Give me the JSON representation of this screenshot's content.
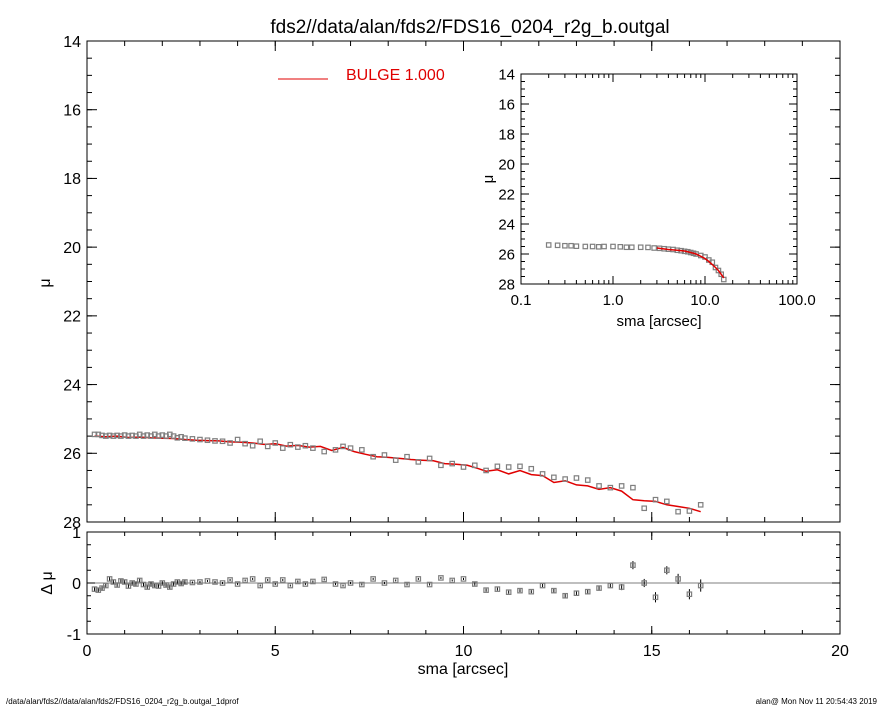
{
  "title": "fds2//data/alan/fds2/FDS16_0204_r2g_b.outgal",
  "footer": {
    "left": "/data/alan/fds2//data/alan/fds2/FDS16_0204_r2g_b.outgal_1dprof",
    "right": "alan@  Mon Nov 11 20:54:43 2019"
  },
  "colors": {
    "model": "#e00000",
    "points": "#7f7f7f",
    "axes": "#000000",
    "zero_line": "#7f7f7f"
  },
  "chart_data": [
    {
      "id": "main",
      "type": "scatter",
      "xlabel": "sma [arcsec]",
      "ylabel": "μ",
      "xlim": [
        0,
        20
      ],
      "ylim": [
        28,
        14
      ],
      "y_inverted": true,
      "xticks": [
        0,
        5,
        10,
        15,
        20
      ],
      "yticks": [
        14,
        16,
        18,
        20,
        22,
        24,
        26,
        28
      ],
      "xtick_labels": [
        "0",
        "5",
        "10",
        "15",
        "20"
      ],
      "ytick_labels": [
        "14",
        "16",
        "18",
        "20",
        "22",
        "24",
        "26",
        "28"
      ],
      "legend": {
        "label": "BULGE  1.000",
        "position": "top-center"
      },
      "series": [
        {
          "name": "BULGE  1.000",
          "kind": "line",
          "x": [
            0.2,
            0.5,
            0.8,
            1.1,
            1.4,
            1.7,
            2.0,
            2.3,
            2.6,
            2.9,
            3.2,
            3.5,
            3.8,
            4.1,
            4.4,
            4.7,
            5.0,
            5.3,
            5.6,
            5.9,
            6.2,
            6.5,
            6.8,
            7.1,
            7.4,
            7.7,
            8.0,
            8.3,
            8.6,
            8.9,
            9.2,
            9.5,
            9.8,
            10.1,
            10.4,
            10.6,
            10.9,
            11.2,
            11.5,
            11.8,
            12.1,
            12.4,
            12.7,
            13.0,
            13.3,
            13.6,
            13.9,
            14.2,
            14.5,
            14.8,
            15.1,
            15.4,
            15.7,
            16.0,
            16.3
          ],
          "y": [
            25.5,
            25.52,
            25.5,
            25.54,
            25.53,
            25.55,
            25.56,
            25.57,
            25.6,
            25.62,
            25.63,
            25.64,
            25.67,
            25.68,
            25.7,
            25.74,
            25.72,
            25.79,
            25.77,
            25.82,
            25.8,
            25.92,
            25.83,
            25.95,
            26.03,
            26.1,
            26.12,
            26.15,
            26.18,
            26.2,
            26.22,
            26.3,
            26.32,
            26.35,
            26.45,
            26.52,
            26.48,
            26.6,
            26.5,
            26.62,
            26.65,
            26.85,
            26.8,
            26.92,
            26.95,
            27.05,
            27.0,
            27.1,
            27.35,
            27.38,
            27.4,
            27.5,
            27.55,
            27.6,
            27.7
          ]
        },
        {
          "name": "",
          "kind": "points",
          "x": [
            0.2,
            0.3,
            0.4,
            0.5,
            0.6,
            0.7,
            0.8,
            0.9,
            1.0,
            1.1,
            1.2,
            1.3,
            1.4,
            1.5,
            1.6,
            1.7,
            1.8,
            1.9,
            2.0,
            2.1,
            2.2,
            2.3,
            2.4,
            2.5,
            2.6,
            2.8,
            3.0,
            3.2,
            3.4,
            3.6,
            3.8,
            4.0,
            4.2,
            4.4,
            4.6,
            4.8,
            5.0,
            5.2,
            5.4,
            5.6,
            5.8,
            6.0,
            6.3,
            6.6,
            6.8,
            7.0,
            7.3,
            7.6,
            7.9,
            8.2,
            8.5,
            8.8,
            9.1,
            9.4,
            9.7,
            10.0,
            10.3,
            10.6,
            10.9,
            11.2,
            11.5,
            11.8,
            12.1,
            12.4,
            12.7,
            13.0,
            13.3,
            13.6,
            13.9,
            14.2,
            14.5,
            14.8,
            15.1,
            15.4,
            15.7,
            16.0,
            16.3
          ],
          "y": [
            25.45,
            25.45,
            25.48,
            25.5,
            25.48,
            25.5,
            25.48,
            25.5,
            25.47,
            25.5,
            25.48,
            25.5,
            25.45,
            25.5,
            25.47,
            25.5,
            25.45,
            25.5,
            25.47,
            25.5,
            25.45,
            25.5,
            25.55,
            25.52,
            25.56,
            25.58,
            25.6,
            25.62,
            25.64,
            25.65,
            25.7,
            25.6,
            25.72,
            25.78,
            25.65,
            25.8,
            25.7,
            25.85,
            25.75,
            25.82,
            25.78,
            25.85,
            25.95,
            25.9,
            25.8,
            25.85,
            25.9,
            26.1,
            26.05,
            26.2,
            26.1,
            26.25,
            26.15,
            26.35,
            26.3,
            26.4,
            26.35,
            26.5,
            26.38,
            26.4,
            26.38,
            26.45,
            26.6,
            26.7,
            26.75,
            26.72,
            26.78,
            26.95,
            27.0,
            26.95,
            27.0,
            27.6,
            27.35,
            27.4,
            27.7,
            27.68,
            27.5
          ]
        }
      ]
    },
    {
      "id": "inset",
      "type": "scatter",
      "xlabel": "sma [arcsec]",
      "ylabel": "μ",
      "x_scale": "log",
      "xlim": [
        0.1,
        100.0
      ],
      "ylim": [
        28,
        14
      ],
      "y_inverted": true,
      "xticks": [
        0.1,
        1.0,
        10.0,
        100.0
      ],
      "yticks": [
        14,
        16,
        18,
        20,
        22,
        24,
        26,
        28
      ],
      "xtick_labels": [
        "0.1",
        "1.0",
        "10.0",
        "100.0"
      ],
      "ytick_labels": [
        "14",
        "16",
        "18",
        "20",
        "22",
        "24",
        "26",
        "28"
      ],
      "series": [
        {
          "name": "",
          "kind": "points",
          "x": [
            0.2,
            0.25,
            0.3,
            0.35,
            0.4,
            0.5,
            0.6,
            0.7,
            0.8,
            1.0,
            1.2,
            1.4,
            1.6,
            2.0,
            2.4,
            2.8,
            3.2,
            3.6,
            4.0,
            4.5,
            5.0,
            5.5,
            6.0,
            6.5,
            7.0,
            7.5,
            8.0,
            9.0,
            10.0,
            11.0,
            12.0,
            13.0,
            14.0,
            15.0,
            16.0
          ],
          "y": [
            25.4,
            25.42,
            25.45,
            25.45,
            25.48,
            25.5,
            25.5,
            25.52,
            25.5,
            25.5,
            25.52,
            25.55,
            25.55,
            25.55,
            25.56,
            25.6,
            25.62,
            25.65,
            25.68,
            25.7,
            25.75,
            25.78,
            25.82,
            25.85,
            25.9,
            25.95,
            26.0,
            26.1,
            26.2,
            26.4,
            26.55,
            26.9,
            27.1,
            27.35,
            27.7
          ]
        },
        {
          "name": "",
          "kind": "line",
          "x": [
            3.0,
            4.0,
            5.0,
            6.0,
            7.0,
            8.0,
            9.0,
            10.0,
            11.0,
            12.0,
            13.0,
            14.0,
            15.0,
            16.0
          ],
          "y": [
            25.6,
            25.7,
            25.75,
            25.8,
            25.9,
            26.0,
            26.15,
            26.3,
            26.5,
            26.7,
            26.9,
            27.1,
            27.35,
            27.6
          ]
        }
      ]
    },
    {
      "id": "residual",
      "type": "scatter",
      "xlabel": "sma [arcsec]",
      "ylabel": "Δ μ",
      "xlim": [
        0,
        20
      ],
      "ylim": [
        -1,
        1
      ],
      "xticks": [
        0,
        5,
        10,
        15,
        20
      ],
      "yticks": [
        -1,
        0,
        1
      ],
      "xtick_labels": [
        "0",
        "5",
        "10",
        "15",
        "20"
      ],
      "ytick_labels": [
        "-1",
        "0",
        "1"
      ],
      "series": [
        {
          "name": "",
          "kind": "points",
          "x": [
            0.2,
            0.3,
            0.4,
            0.5,
            0.6,
            0.7,
            0.8,
            0.9,
            1.0,
            1.1,
            1.2,
            1.3,
            1.4,
            1.5,
            1.6,
            1.7,
            1.8,
            1.9,
            2.0,
            2.1,
            2.2,
            2.3,
            2.4,
            2.5,
            2.6,
            2.8,
            3.0,
            3.2,
            3.4,
            3.6,
            3.8,
            4.0,
            4.2,
            4.4,
            4.6,
            4.8,
            5.0,
            5.2,
            5.4,
            5.6,
            5.8,
            6.0,
            6.3,
            6.6,
            6.8,
            7.0,
            7.3,
            7.6,
            7.9,
            8.2,
            8.5,
            8.8,
            9.1,
            9.4,
            9.7,
            10.0,
            10.3,
            10.6,
            10.9,
            11.2,
            11.5,
            11.8,
            12.1,
            12.4,
            12.7,
            13.0,
            13.3,
            13.6,
            13.9,
            14.2,
            14.5,
            14.8,
            15.1,
            15.4,
            15.7,
            16.0,
            16.3
          ],
          "y": [
            -0.12,
            -0.14,
            -0.1,
            -0.05,
            0.08,
            0.02,
            -0.04,
            0.04,
            0.02,
            -0.06,
            0.0,
            -0.02,
            0.05,
            -0.03,
            -0.08,
            -0.02,
            -0.05,
            -0.06,
            0.0,
            -0.04,
            -0.08,
            -0.02,
            0.02,
            -0.01,
            0.02,
            0.01,
            0.02,
            0.04,
            0.02,
            0.0,
            0.06,
            -0.02,
            0.05,
            0.08,
            -0.05,
            0.06,
            -0.02,
            0.06,
            -0.05,
            0.03,
            -0.02,
            0.03,
            0.07,
            -0.02,
            -0.05,
            0.0,
            -0.03,
            0.08,
            0.0,
            0.05,
            -0.03,
            0.08,
            -0.03,
            0.1,
            0.05,
            0.08,
            -0.02,
            -0.14,
            -0.12,
            -0.18,
            -0.15,
            -0.17,
            -0.05,
            -0.15,
            -0.25,
            -0.2,
            -0.17,
            -0.1,
            -0.05,
            -0.08,
            0.35,
            0.0,
            -0.28,
            0.25,
            0.08,
            -0.22,
            -0.05
          ],
          "err": [
            0.05,
            0.05,
            0.05,
            0.04,
            0.04,
            0.04,
            0.04,
            0.04,
            0.04,
            0.04,
            0.04,
            0.04,
            0.04,
            0.04,
            0.04,
            0.04,
            0.04,
            0.04,
            0.04,
            0.04,
            0.04,
            0.04,
            0.04,
            0.04,
            0.04,
            0.02,
            0.02,
            0.02,
            0.02,
            0.02,
            0.02,
            0.02,
            0.02,
            0.02,
            0.02,
            0.02,
            0.02,
            0.02,
            0.02,
            0.02,
            0.02,
            0.02,
            0.02,
            0.02,
            0.02,
            0.02,
            0.02,
            0.02,
            0.02,
            0.02,
            0.02,
            0.02,
            0.02,
            0.02,
            0.02,
            0.02,
            0.03,
            0.03,
            0.03,
            0.03,
            0.03,
            0.03,
            0.03,
            0.04,
            0.04,
            0.05,
            0.05,
            0.05,
            0.05,
            0.06,
            0.08,
            0.08,
            0.1,
            0.08,
            0.1,
            0.1,
            0.12
          ]
        }
      ]
    }
  ]
}
